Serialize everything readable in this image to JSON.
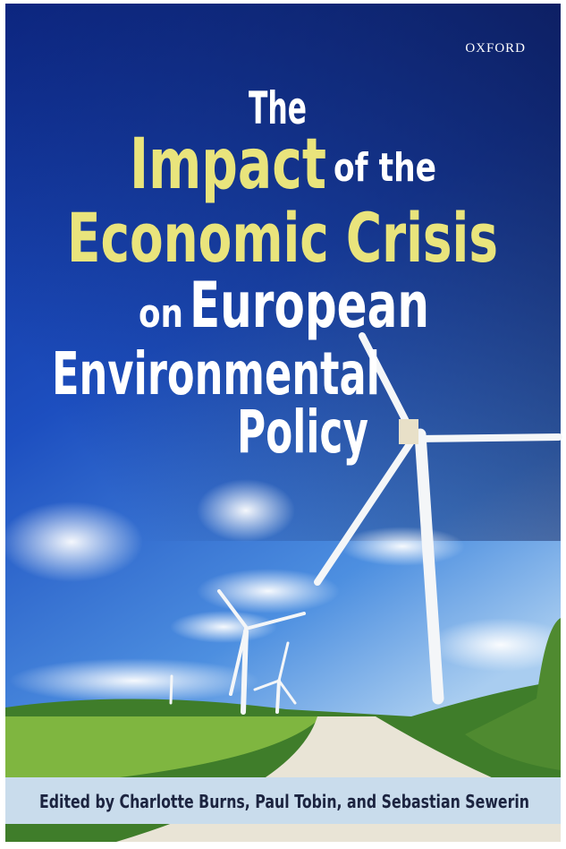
{
  "cover": {
    "publisher": "OXFORD",
    "title": {
      "line1": "The",
      "highlight1": "Impact",
      "line2_rest": "of the",
      "highlight2": "Economic Crisis",
      "line4_prefix": "on",
      "line4": "European",
      "line5": "Environmental",
      "line6": "Policy"
    },
    "editors": "Edited by Charlotte Burns, Paul Tobin, and Sebastian Sewerin"
  }
}
